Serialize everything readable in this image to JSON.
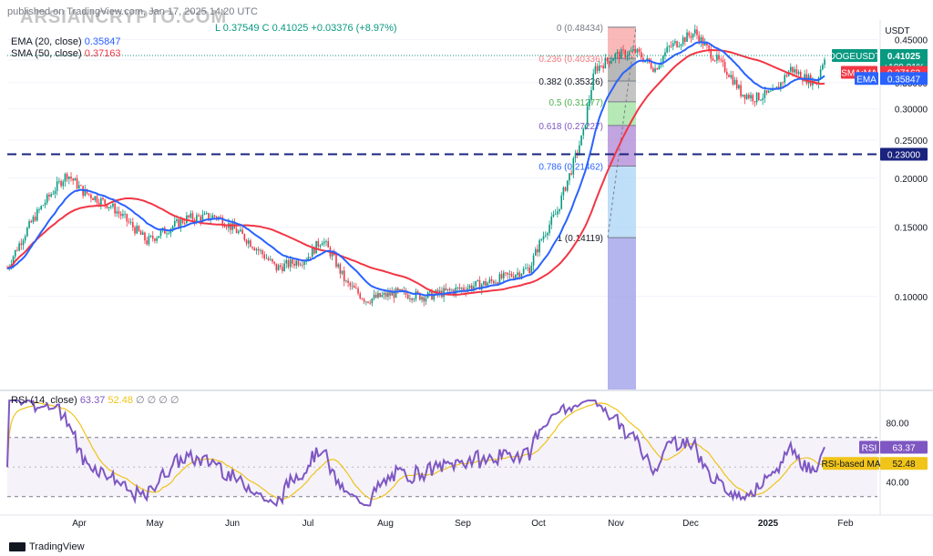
{
  "watermark": "ARSIANCRYPTO.COM",
  "header": {
    "line1_prefix": "published on TradingView.com, Jan 17, 2025 14:20 UTC",
    "ohlc": "L 0.37549  C 0.41025  +0.03376 (+8.97%)",
    "ema_label": "EMA (20, close)",
    "ema_value": "0.35847",
    "sma_label": "SMA (50, close)",
    "sma_value": "0.37163",
    "rsi_label": "RSI (14, close)",
    "rsi_value": "63.37",
    "rsi_ma_value": "52.48"
  },
  "footer": {
    "brand": "TradingView"
  },
  "chart_data": [
    {
      "type": "candlestick",
      "symbol": "DOGEUSDT",
      "price_unit": "USDT",
      "x_ticks": [
        "Apr",
        "May",
        "Jun",
        "Jul",
        "Aug",
        "Sep",
        "Oct",
        "Nov",
        "Dec",
        "2025",
        "Feb"
      ],
      "y_ticks": [
        "0.45000",
        "0.40000",
        "0.35000",
        "0.30000",
        "0.25000",
        "0.20000",
        "0.15000",
        "0.10000"
      ],
      "y_tick_values": [
        0.45,
        0.4,
        0.35,
        0.3,
        0.25,
        0.2,
        0.15,
        0.1
      ],
      "ylim": [
        0.058,
        0.505
      ],
      "series": [
        {
          "name": "DOGEUSDT",
          "color": "#089981",
          "down_color": "#f23645"
        },
        {
          "name": "EMA",
          "period": 20,
          "color": "#2962ff"
        },
        {
          "name": "SMA:MA",
          "period": 50,
          "color": "#f23645"
        }
      ],
      "labels": {
        "last_price": "0.41025",
        "change": "+189.01%",
        "countdown": "09:39:35",
        "sma": "0.37163",
        "ema": "0.35847",
        "support": "0.23000"
      },
      "support_level": 0.23,
      "fib_levels": [
        {
          "label": "0 (0.48434)",
          "value": 0.48434
        },
        {
          "label": "0.236 (0.40336)",
          "value": 0.40336
        },
        {
          "label": "0.382 (0.35326)",
          "value": 0.35326
        },
        {
          "label": "0.5 (0.31277)",
          "value": 0.31277
        },
        {
          "label": "0.618 (0.27227)",
          "value": 0.27227
        },
        {
          "label": "0.786 (0.21462)",
          "value": 0.21462
        },
        {
          "label": "1 (0.14119)",
          "value": 0.14119
        }
      ],
      "fib_colors": [
        "#f7a1a1",
        "#a0a0a0",
        "#b0b0b0",
        "#9ce09c",
        "#ad86d6",
        "#a9d3f5",
        "#9b9bea"
      ],
      "fib_label_colors": [
        "#787b86",
        "#f77c80",
        "#131722",
        "#4caf50",
        "#7e57c2",
        "#2962ff",
        "#131722"
      ]
    },
    {
      "type": "line",
      "name": "RSI (14, close)",
      "y_ticks": [
        "80.00",
        "40.00"
      ],
      "y_tick_values": [
        80,
        40
      ],
      "ylim": [
        20,
        100
      ],
      "band": [
        30,
        70
      ],
      "series": [
        {
          "name": "RSI",
          "color": "#7e57c2"
        },
        {
          "name": "RSI-based MA",
          "color": "#f0c419"
        }
      ],
      "labels": {
        "rsi": "63.37",
        "rsi_ma": "52.48"
      }
    }
  ]
}
